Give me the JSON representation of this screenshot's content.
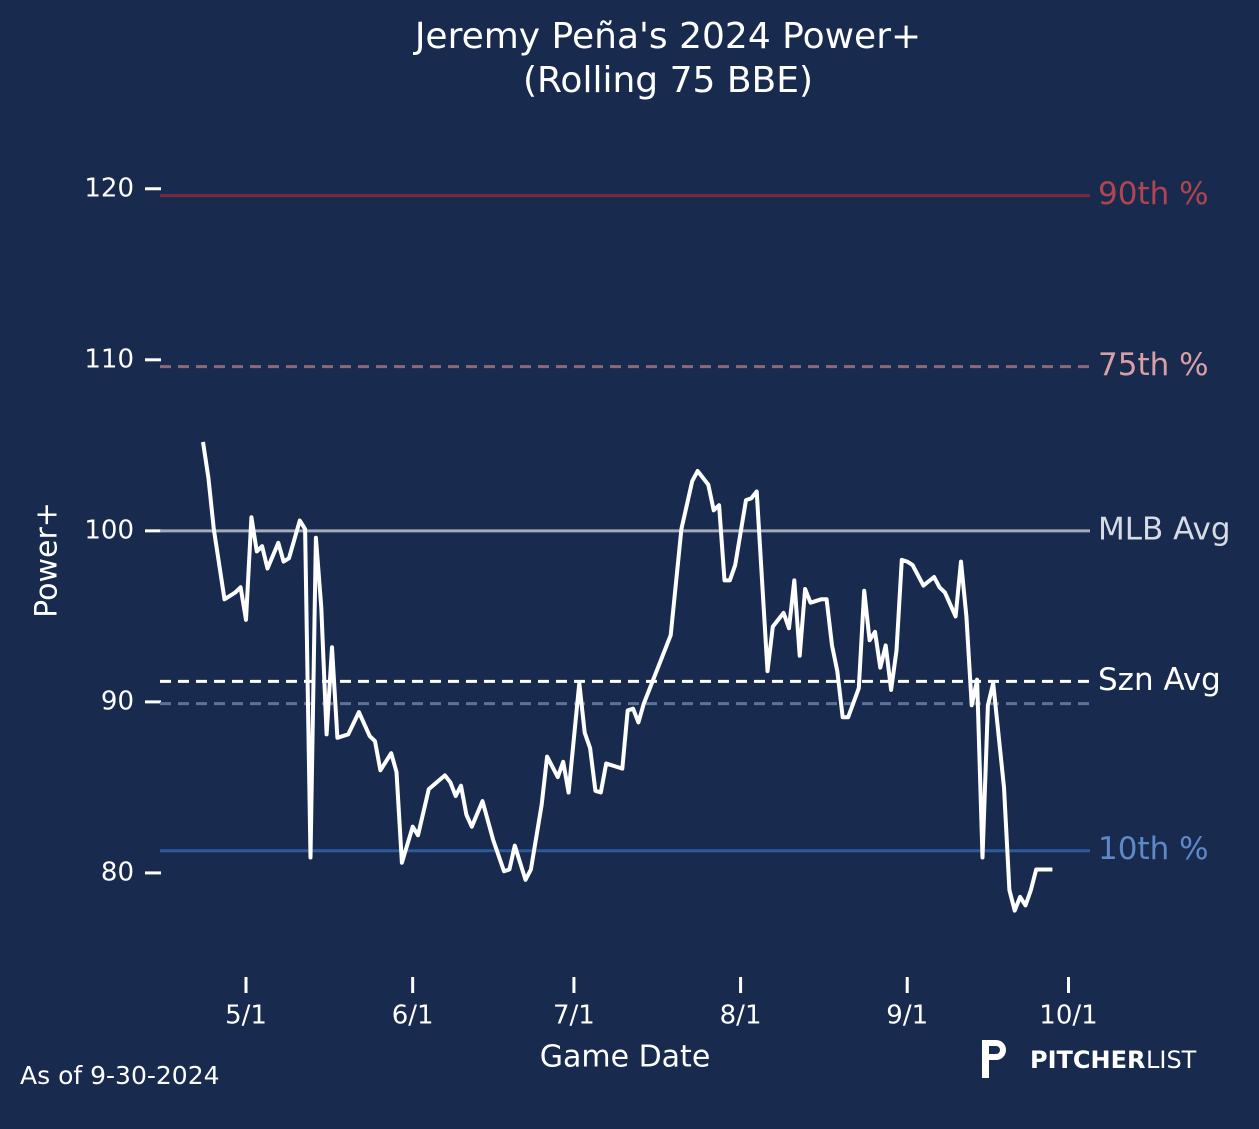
{
  "chart_data": {
    "type": "line",
    "title": "Jeremy Peña's 2024 Power+",
    "subtitle": "(Rolling 75 BBE)",
    "x_label": "Game Date",
    "y_label": "Power+",
    "footnote": "As of 9-30-2024",
    "brand": [
      "PITCHER",
      "LIST"
    ],
    "x": [
      "2024-04-23",
      "2024-04-24",
      "2024-04-25",
      "2024-04-27",
      "2024-04-29",
      "2024-04-30",
      "2024-05-01",
      "2024-05-02",
      "2024-05-03",
      "2024-05-04",
      "2024-05-05",
      "2024-05-07",
      "2024-05-08",
      "2024-05-09",
      "2024-05-11",
      "2024-05-12",
      "2024-05-13",
      "2024-05-14",
      "2024-05-15",
      "2024-05-16",
      "2024-05-17",
      "2024-05-18",
      "2024-05-20",
      "2024-05-22",
      "2024-05-24",
      "2024-05-25",
      "2024-05-26",
      "2024-05-28",
      "2024-05-29",
      "2024-05-30",
      "2024-06-01",
      "2024-06-02",
      "2024-06-04",
      "2024-06-07",
      "2024-06-08",
      "2024-06-09",
      "2024-06-10",
      "2024-06-11",
      "2024-06-12",
      "2024-06-14",
      "2024-06-16",
      "2024-06-18",
      "2024-06-19",
      "2024-06-20",
      "2024-06-22",
      "2024-06-23",
      "2024-06-25",
      "2024-06-26",
      "2024-06-28",
      "2024-06-29",
      "2024-06-30",
      "2024-07-02",
      "2024-07-03",
      "2024-07-04",
      "2024-07-05",
      "2024-07-06",
      "2024-07-07",
      "2024-07-10",
      "2024-07-11",
      "2024-07-12",
      "2024-07-13",
      "2024-07-14",
      "2024-07-19",
      "2024-07-21",
      "2024-07-23",
      "2024-07-24",
      "2024-07-26",
      "2024-07-27",
      "2024-07-28",
      "2024-07-29",
      "2024-07-30",
      "2024-07-31",
      "2024-08-02",
      "2024-08-03",
      "2024-08-04",
      "2024-08-06",
      "2024-08-07",
      "2024-08-09",
      "2024-08-10",
      "2024-08-11",
      "2024-08-12",
      "2024-08-13",
      "2024-08-14",
      "2024-08-16",
      "2024-08-17",
      "2024-08-18",
      "2024-08-19",
      "2024-08-20",
      "2024-08-21",
      "2024-08-23",
      "2024-08-24",
      "2024-08-25",
      "2024-08-26",
      "2024-08-27",
      "2024-08-28",
      "2024-08-29",
      "2024-08-30",
      "2024-08-31",
      "2024-09-01",
      "2024-09-02",
      "2024-09-04",
      "2024-09-06",
      "2024-09-07",
      "2024-09-08",
      "2024-09-10",
      "2024-09-11",
      "2024-09-12",
      "2024-09-13",
      "2024-09-14",
      "2024-09-15",
      "2024-09-16",
      "2024-09-17",
      "2024-09-19",
      "2024-09-20",
      "2024-09-21",
      "2024-09-22",
      "2024-09-23",
      "2024-09-24",
      "2024-09-25",
      "2024-09-28"
    ],
    "series": [
      {
        "name": "Power+",
        "color": "#ffffff",
        "values": [
          105.2,
          103.1,
          100.1,
          96.0,
          96.4,
          96.7,
          94.8,
          100.8,
          98.8,
          99.1,
          97.8,
          99.3,
          98.2,
          98.4,
          100.6,
          100.1,
          80.9,
          99.6,
          95.5,
          88.1,
          93.2,
          87.9,
          88.1,
          89.4,
          88.0,
          87.7,
          86.0,
          87.0,
          85.9,
          80.6,
          82.7,
          82.2,
          84.9,
          85.7,
          85.3,
          84.5,
          85.1,
          83.4,
          82.7,
          84.2,
          81.9,
          80.1,
          80.2,
          81.6,
          79.6,
          80.2,
          84.0,
          86.8,
          85.6,
          86.5,
          84.7,
          91.1,
          88.2,
          87.3,
          84.8,
          84.7,
          86.4,
          86.1,
          89.5,
          89.6,
          88.8,
          89.9,
          93.9,
          100.1,
          102.9,
          103.5,
          102.7,
          101.2,
          101.5,
          97.1,
          97.1,
          98.0,
          101.8,
          101.9,
          102.3,
          91.8,
          94.4,
          95.2,
          94.3,
          97.1,
          92.7,
          96.6,
          95.8,
          96.0,
          96.0,
          93.3,
          91.8,
          89.1,
          89.1,
          90.8,
          96.5,
          93.6,
          94.1,
          92.0,
          93.3,
          90.7,
          93.0,
          98.3,
          98.2,
          98.0,
          96.8,
          97.3,
          96.7,
          96.4,
          95.0,
          98.2,
          95.0,
          89.8,
          91.3,
          80.9,
          89.8,
          91.1,
          85.0,
          79.0,
          77.8,
          78.6,
          78.1,
          79.0,
          80.2,
          80.2
        ]
      }
    ],
    "reference_lines": [
      {
        "label": "90th %",
        "value": 119.6,
        "color": "#7a2a3a",
        "label_color": "#b04550",
        "dashed": false
      },
      {
        "label": "75th %",
        "value": 109.6,
        "color": "#8a6a7a",
        "label_color": "#d8a0a4",
        "dashed": true
      },
      {
        "label": "MLB Avg",
        "value": 100,
        "color": "#a4abb8",
        "label_color": "#d6dbe4",
        "dashed": false
      },
      {
        "label": "Szn Avg",
        "value": 91.2,
        "color": "#ffffff",
        "label_color": "#ffffff",
        "dashed": true
      },
      {
        "label": null,
        "value": 89.9,
        "color": "#5d7299",
        "label_color": "#5d7299",
        "dashed": true
      },
      {
        "label": "10th %",
        "value": 81.3,
        "color": "#2c5b9c",
        "label_color": "#5f88c6",
        "dashed": false
      }
    ],
    "xlim": [
      "2024-04-15",
      "2024-10-05"
    ],
    "xticks": [
      {
        "value": "2024-05-01",
        "label": "5/1"
      },
      {
        "value": "2024-06-01",
        "label": "6/1"
      },
      {
        "value": "2024-07-01",
        "label": "7/1"
      },
      {
        "value": "2024-08-01",
        "label": "8/1"
      },
      {
        "value": "2024-09-01",
        "label": "9/1"
      },
      {
        "value": "2024-10-01",
        "label": "10/1"
      }
    ],
    "ylim": [
      74.5,
      122.5
    ],
    "yticks": [
      80,
      90,
      100,
      110,
      120
    ]
  }
}
